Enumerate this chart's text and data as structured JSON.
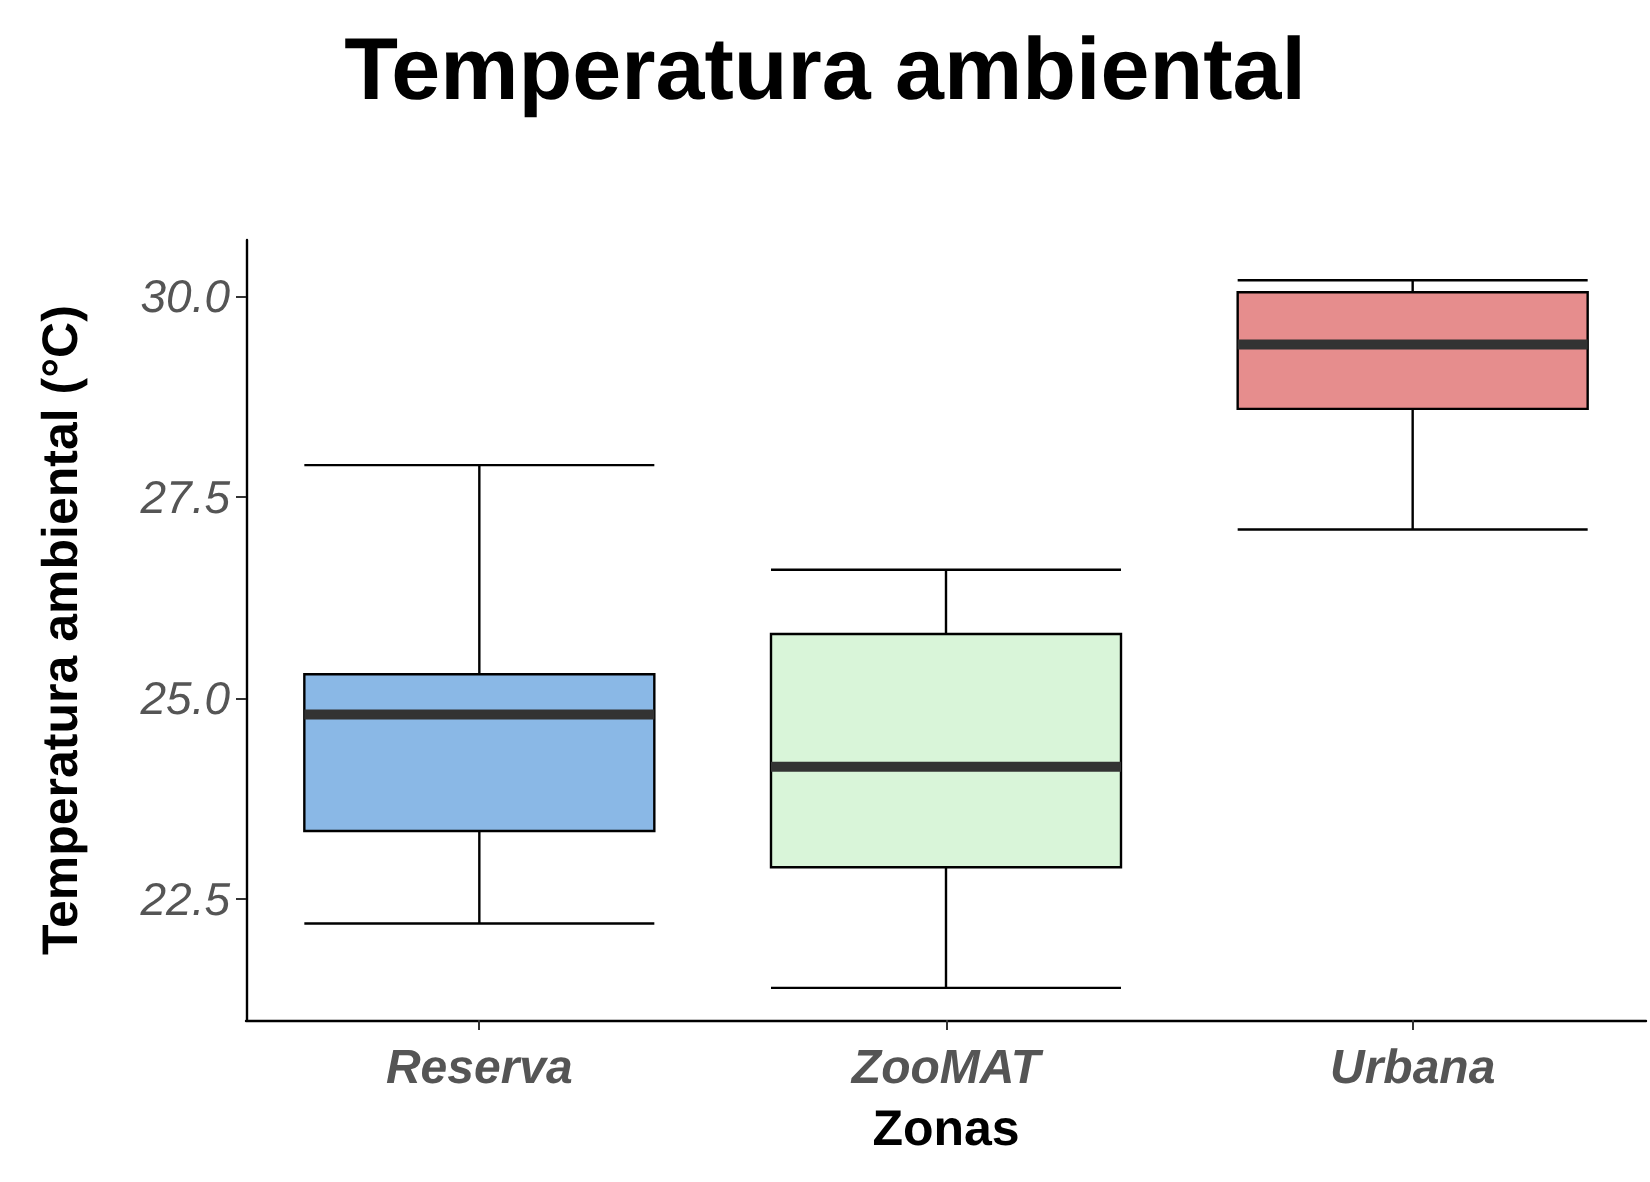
{
  "chart_data": {
    "type": "box",
    "title": "Temperatura ambiental",
    "xlabel": "Zonas",
    "ylabel": "Temperatura ambiental (°C)",
    "categories": [
      "Reserva",
      "ZooMAT",
      "Urbana"
    ],
    "colors": [
      "#8ab8e6",
      "#d9f5d9",
      "#e68d8d"
    ],
    "boxes": [
      {
        "low": 22.2,
        "q1": 23.35,
        "median": 24.8,
        "q3": 25.3,
        "high": 27.9
      },
      {
        "low": 21.4,
        "q1": 22.9,
        "median": 24.15,
        "q3": 25.8,
        "high": 26.6
      },
      {
        "low": 27.1,
        "q1": 28.6,
        "median": 29.4,
        "q3": 30.05,
        "high": 30.2
      }
    ],
    "ylim": [
      21.0,
      30.7
    ],
    "yticks": [
      22.5,
      {
        "value": 25,
        "label": "25.0"
      },
      27.5,
      {
        "value": 30,
        "label": "30.0"
      }
    ]
  }
}
